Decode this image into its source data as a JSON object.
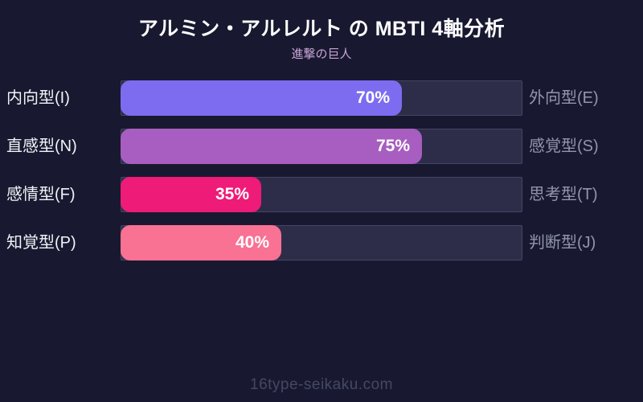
{
  "page": {
    "background_color": "#181930"
  },
  "header": {
    "title": "アルミン・アルレルト の MBTI 4軸分析",
    "subtitle": "進撃の巨人"
  },
  "chart_data": {
    "type": "bar",
    "orientation": "horizontal",
    "title": "アルミン・アルレルト の MBTI 4軸分析",
    "subtitle": "進撃の巨人",
    "xlim": [
      0,
      100
    ],
    "grid": false,
    "legend": false,
    "track_color": "#2e2d49",
    "track_border_color": "#454463",
    "value_text_color": "#ffffff",
    "left_label_color": "#f2f2f7",
    "right_label_color": "#9295ab",
    "rows": [
      {
        "left_label": "内向型(I)",
        "right_label": "外向型(E)",
        "value": 70,
        "value_label": "70%",
        "color": "#7d6cf0"
      },
      {
        "left_label": "直感型(N)",
        "right_label": "感覚型(S)",
        "value": 75,
        "value_label": "75%",
        "color": "#a75ec0"
      },
      {
        "left_label": "感情型(F)",
        "right_label": "思考型(T)",
        "value": 35,
        "value_label": "35%",
        "color": "#ee1b79"
      },
      {
        "left_label": "知覚型(P)",
        "right_label": "判断型(J)",
        "value": 40,
        "value_label": "40%",
        "color": "#f97193"
      }
    ]
  },
  "footer": {
    "watermark": "16type-seikaku.com"
  }
}
